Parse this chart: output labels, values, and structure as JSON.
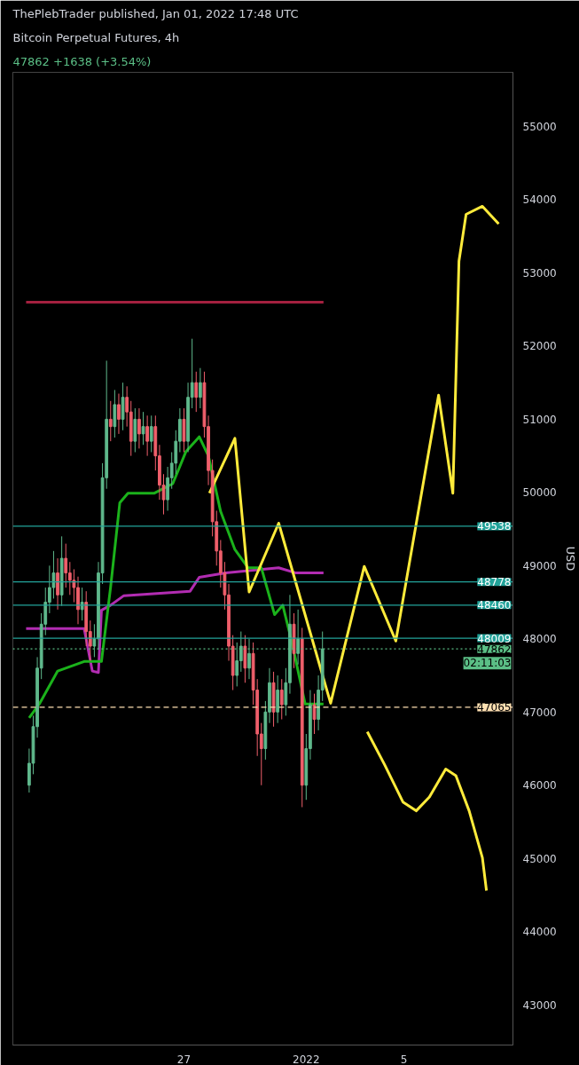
{
  "chart_data": {
    "type": "candlestick",
    "title": "Bitcoin Perpetual Futures, 4h",
    "subtitle": "47862 +1638 (+3.54%)",
    "ylabel": "USD",
    "annotations": [
      "ThePlebTrader published, Jan 01, 2022 17:48 UTC",
      "02:11:03"
    ],
    "x": [
      "2021-12-20T16:00",
      "2021-12-20T20:00",
      "2021-12-21T00:00",
      "2021-12-21T04:00",
      "2021-12-21T08:00",
      "2021-12-21T12:00",
      "2021-12-21T16:00",
      "2021-12-21T20:00",
      "2021-12-22T00:00",
      "2021-12-22T04:00",
      "2021-12-22T08:00",
      "2021-12-22T12:00",
      "2021-12-22T16:00",
      "2021-12-22T20:00",
      "2021-12-23T00:00",
      "2021-12-23T04:00",
      "2021-12-23T08:00",
      "2021-12-23T12:00",
      "2021-12-23T16:00",
      "2021-12-23T20:00",
      "2021-12-24T00:00",
      "2021-12-24T04:00",
      "2021-12-24T08:00",
      "2021-12-24T12:00",
      "2021-12-24T16:00",
      "2021-12-24T20:00",
      "2021-12-25T00:00",
      "2021-12-25T04:00",
      "2021-12-25T08:00",
      "2021-12-25T12:00",
      "2021-12-25T16:00",
      "2021-12-25T20:00",
      "2021-12-26T00:00",
      "2021-12-26T04:00",
      "2021-12-26T08:00",
      "2021-12-26T12:00",
      "2021-12-26T16:00",
      "2021-12-26T20:00",
      "2021-12-27T00:00",
      "2021-12-27T04:00",
      "2021-12-27T08:00",
      "2021-12-27T12:00",
      "2021-12-27T16:00",
      "2021-12-27T20:00",
      "2021-12-28T00:00",
      "2021-12-28T04:00",
      "2021-12-28T08:00",
      "2021-12-28T12:00",
      "2021-12-28T16:00",
      "2021-12-28T20:00",
      "2021-12-29T00:00",
      "2021-12-29T04:00",
      "2021-12-29T08:00",
      "2021-12-29T12:00",
      "2021-12-29T16:00",
      "2021-12-29T20:00",
      "2021-12-30T00:00",
      "2021-12-30T04:00",
      "2021-12-30T08:00",
      "2021-12-30T12:00",
      "2021-12-30T16:00",
      "2021-12-30T20:00",
      "2021-12-31T00:00",
      "2021-12-31T04:00",
      "2021-12-31T08:00",
      "2021-12-31T12:00",
      "2021-12-31T16:00",
      "2021-12-31T20:00",
      "2022-01-01T00:00",
      "2022-01-01T04:00",
      "2022-01-01T08:00",
      "2022-01-01T12:00",
      "2022-01-01T16:00"
    ],
    "ohlc": [
      [
        46000,
        46500,
        45900,
        46300
      ],
      [
        46300,
        46950,
        46150,
        46800
      ],
      [
        46800,
        47750,
        46650,
        47600
      ],
      [
        47600,
        48350,
        47450,
        48200
      ],
      [
        48200,
        48700,
        48050,
        48500
      ],
      [
        48500,
        49000,
        48350,
        48700
      ],
      [
        48700,
        49200,
        48550,
        48900
      ],
      [
        48900,
        49100,
        48400,
        48600
      ],
      [
        48600,
        49400,
        48450,
        49100
      ],
      [
        49100,
        49300,
        48700,
        48900
      ],
      [
        48900,
        49050,
        48600,
        48800
      ],
      [
        48800,
        48950,
        48500,
        48700
      ],
      [
        48700,
        48850,
        48200,
        48400
      ],
      [
        48400,
        48700,
        48250,
        48500
      ],
      [
        48500,
        48650,
        47900,
        48100
      ],
      [
        48100,
        48250,
        47700,
        47900
      ],
      [
        47900,
        48200,
        47750,
        48000
      ],
      [
        48000,
        49050,
        47850,
        48900
      ],
      [
        48900,
        50400,
        48750,
        50200
      ],
      [
        50200,
        51800,
        50050,
        51000
      ],
      [
        51000,
        51250,
        50700,
        50900
      ],
      [
        50900,
        51400,
        50750,
        51200
      ],
      [
        51200,
        51350,
        50800,
        51000
      ],
      [
        51000,
        51500,
        50850,
        51300
      ],
      [
        51300,
        51450,
        50900,
        51100
      ],
      [
        51100,
        51250,
        50500,
        50700
      ],
      [
        50700,
        51150,
        50550,
        51000
      ],
      [
        51000,
        51150,
        50600,
        50800
      ],
      [
        50800,
        51100,
        50650,
        50900
      ],
      [
        50900,
        51050,
        50500,
        50700
      ],
      [
        50700,
        51050,
        50550,
        50900
      ],
      [
        50900,
        51050,
        50300,
        50500
      ],
      [
        50500,
        50650,
        49900,
        50100
      ],
      [
        50100,
        50250,
        49700,
        49900
      ],
      [
        49900,
        50350,
        49750,
        50200
      ],
      [
        50200,
        50550,
        50050,
        50400
      ],
      [
        50400,
        50850,
        50250,
        50700
      ],
      [
        50700,
        51150,
        50550,
        51000
      ],
      [
        51000,
        51150,
        50550,
        50700
      ],
      [
        50700,
        51500,
        50550,
        51300
      ],
      [
        51300,
        52100,
        51150,
        51500
      ],
      [
        51500,
        51650,
        51100,
        51300
      ],
      [
        51300,
        51700,
        51150,
        51500
      ],
      [
        51500,
        51650,
        50750,
        50900
      ],
      [
        50900,
        51050,
        50100,
        50300
      ],
      [
        50300,
        50450,
        49400,
        49600
      ],
      [
        49600,
        49750,
        49000,
        49200
      ],
      [
        49200,
        49350,
        48700,
        48900
      ],
      [
        48900,
        49050,
        48400,
        48600
      ],
      [
        48600,
        48750,
        47700,
        47900
      ],
      [
        47900,
        48050,
        47300,
        47500
      ],
      [
        47500,
        47950,
        47350,
        47700
      ],
      [
        47700,
        48100,
        47550,
        47900
      ],
      [
        47900,
        48050,
        47400,
        47600
      ],
      [
        47600,
        48000,
        47450,
        47800
      ],
      [
        47800,
        47950,
        47100,
        47300
      ],
      [
        47300,
        47450,
        46400,
        46700
      ],
      [
        46700,
        46850,
        46000,
        46500
      ],
      [
        46500,
        47150,
        46350,
        47000
      ],
      [
        47000,
        47600,
        46850,
        47400
      ],
      [
        47400,
        47550,
        46800,
        47000
      ],
      [
        47000,
        47500,
        46850,
        47300
      ],
      [
        47300,
        47450,
        46900,
        47100
      ],
      [
        47100,
        47600,
        46950,
        47400
      ],
      [
        47400,
        48600,
        47250,
        48200
      ],
      [
        48200,
        48350,
        47600,
        47800
      ],
      [
        47800,
        48400,
        47650,
        48000
      ],
      [
        48000,
        48150,
        45700,
        46000
      ],
      [
        46000,
        46700,
        45800,
        46500
      ],
      [
        46500,
        47300,
        46350,
        47100
      ],
      [
        47100,
        47250,
        46700,
        46900
      ],
      [
        46900,
        47500,
        46750,
        47300
      ],
      [
        47300,
        48100,
        47150,
        47862
      ]
    ],
    "colors": [
      "#5fb88c",
      "#5fb88c",
      "#5fb88c",
      "#5fb88c",
      "#5fb88c",
      "#5fb88c",
      "#5fb88c",
      "#ef5f6b",
      "#5fb88c",
      "#ef5f6b",
      "#ef5f6b",
      "#ef5f6b",
      "#ef5f6b",
      "#5fb88c",
      "#ef5f6b",
      "#ef5f6b",
      "#5fb88c",
      "#5fb88c",
      "#5fb88c",
      "#5fb88c",
      "#ef5f6b",
      "#5fb88c",
      "#ef5f6b",
      "#5fb88c",
      "#ef5f6b",
      "#ef5f6b",
      "#5fb88c",
      "#ef5f6b",
      "#5fb88c",
      "#ef5f6b",
      "#5fb88c",
      "#ef5f6b",
      "#ef5f6b",
      "#ef5f6b",
      "#5fb88c",
      "#5fb88c",
      "#5fb88c",
      "#5fb88c",
      "#ef5f6b",
      "#5fb88c",
      "#5fb88c",
      "#ef5f6b",
      "#5fb88c",
      "#ef5f6b",
      "#ef5f6b",
      "#ef5f6b",
      "#ef5f6b",
      "#ef5f6b",
      "#ef5f6b",
      "#ef5f6b",
      "#ef5f6b",
      "#5fb88c",
      "#5fb88c",
      "#ef5f6b",
      "#5fb88c",
      "#ef5f6b",
      "#ef5f6b",
      "#ef5f6b",
      "#5fb88c",
      "#5fb88c",
      "#ef5f6b",
      "#5fb88c",
      "#ef5f6b",
      "#5fb88c",
      "#5fb88c",
      "#ef5f6b",
      "#5fb88c",
      "#ef5f6b",
      "#5fb88c",
      "#5fb88c",
      "#ef5f6b",
      "#5fb88c",
      "#5fb88c"
    ],
    "series": [
      {
        "type": "line",
        "color": "#a3203f",
        "x": [
          "2021-12-20T13:00",
          "2022-01-01T17:00"
        ],
        "values": [
          52600,
          52600
        ]
      },
      {
        "type": "line",
        "color": "#b22cb2",
        "x": [
          "2021-12-20T13:00",
          "2021-12-22T22:00",
          "2021-12-23T06:00",
          "2021-12-23T12:00",
          "2021-12-23T15:00",
          "2021-12-24T00:00",
          "2021-12-24T13:00",
          "2021-12-27T06:00",
          "2021-12-27T15:00",
          "2021-12-28T17:00",
          "2021-12-30T21:00",
          "2021-12-31T14:00",
          "2022-01-01T17:00"
        ],
        "values": [
          48140,
          48140,
          47560,
          47540,
          48390,
          48460,
          48590,
          48650,
          48840,
          48900,
          48970,
          48900,
          48900
        ]
      },
      {
        "type": "line",
        "color": "#1bb21b",
        "x": [
          "2021-12-20T16:00",
          "2021-12-21T02:00",
          "2021-12-21T20:00",
          "2021-12-22T22:00",
          "2021-12-23T15:00",
          "2021-12-24T00:00",
          "2021-12-24T09:00",
          "2021-12-24T17:00",
          "2021-12-25T19:00",
          "2021-12-26T13:00",
          "2021-12-27T02:00",
          "2021-12-27T15:00",
          "2021-12-28T00:00",
          "2021-12-28T12:00",
          "2021-12-29T02:00",
          "2021-12-29T15:00",
          "2021-12-30T04:00",
          "2021-12-30T17:00",
          "2021-12-31T01:00",
          "2021-12-31T10:00",
          "2021-12-31T23:00",
          "2022-01-01T17:00"
        ],
        "values": [
          46920,
          47110,
          47560,
          47690,
          47690,
          48710,
          49860,
          49990,
          49990,
          50120,
          50560,
          50760,
          50500,
          49740,
          49220,
          48970,
          48970,
          48330,
          48460,
          47950,
          47110,
          47110
        ]
      },
      {
        "type": "line",
        "color": "#ffeb3b",
        "x": [
          "2021-12-28T01:00",
          "2021-12-29T02:00",
          "2021-12-29T16:00",
          "2021-12-30T21:00",
          "2022-01-02T00:00",
          "2022-01-03T09:00",
          "2022-01-04T16:00",
          "2022-01-06T10:00",
          "2022-01-07T00:00",
          "2022-01-07T06:00",
          "2022-01-07T13:00",
          "2022-01-08T05:00",
          "2022-01-08T21:00"
        ],
        "values": [
          49990,
          50740,
          48640,
          49580,
          47120,
          48990,
          47970,
          51330,
          49990,
          53160,
          53800,
          53910,
          53670
        ]
      },
      {
        "type": "line",
        "color": "#ffeb3b",
        "x": [
          "2022-01-03T12:00",
          "2022-01-04T05:00",
          "2022-01-04T23:00",
          "2022-01-05T12:00",
          "2022-01-06T01:00",
          "2022-01-06T17:00",
          "2022-01-07T03:00",
          "2022-01-07T16:00",
          "2022-01-08T05:00",
          "2022-01-08T09:00"
        ],
        "values": [
          46730,
          46280,
          45770,
          45650,
          45840,
          46220,
          46130,
          45650,
          45010,
          44560
        ]
      }
    ],
    "ref_lines": [
      {
        "axis": "y",
        "value": 49538,
        "label": "49538",
        "color": "#22a39a",
        "line_style": "solid"
      },
      {
        "axis": "y",
        "value": 48778,
        "label": "48778",
        "color": "#22a39a",
        "line_style": "solid"
      },
      {
        "axis": "y",
        "value": 48460,
        "label": "48460",
        "color": "#22a39a",
        "line_style": "solid"
      },
      {
        "axis": "y",
        "value": 48009,
        "label": "48009",
        "color": "#22a39a",
        "line_style": "solid"
      },
      {
        "axis": "y",
        "value": 47862,
        "label": "47862",
        "color": "#5bbf86",
        "line_style": "dotted"
      },
      {
        "axis": "y",
        "value": 47065,
        "label": "47065",
        "color": "#ffe0b2",
        "line_style": "dashed"
      }
    ],
    "xlim": [
      "2021-12-20T00:00",
      "2022-01-09T11:00"
    ],
    "xticks": [
      {
        "value": "2021-12-27",
        "label": "27"
      },
      {
        "value": "2022-01-01",
        "label": "2022"
      },
      {
        "value": "2022-01-05",
        "label": "5"
      }
    ],
    "ylim": [
      42450,
      55740
    ],
    "yticks": [
      43000,
      44000,
      45000,
      46000,
      47000,
      48000,
      49000,
      50000,
      51000,
      52000,
      53000,
      54000,
      55000
    ],
    "grid": false,
    "marker": "none"
  }
}
